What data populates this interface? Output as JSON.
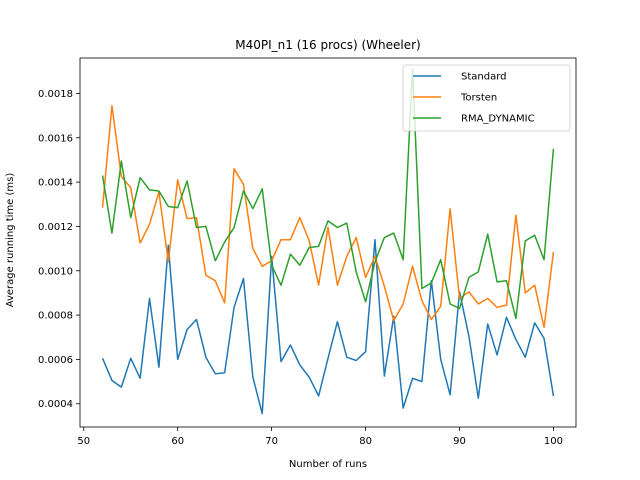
{
  "chart_data": {
    "type": "line",
    "title": "M40PI_n1 (16 procs) (Wheeler)",
    "xlabel": "Number of runs",
    "ylabel": "Average running time (ms)",
    "xlim": [
      49.6,
      102.4
    ],
    "ylim": [
      0.000295,
      0.00196
    ],
    "xticks": [
      50,
      60,
      70,
      80,
      90,
      100
    ],
    "yticks": [
      0.0004,
      0.0006,
      0.0008,
      0.001,
      0.0012,
      0.0014,
      0.0016,
      0.0018
    ],
    "ytick_labels": [
      "0.0004",
      "0.0006",
      "0.0008",
      "0.0010",
      "0.0012",
      "0.0014",
      "0.0016",
      "0.0018"
    ],
    "legend_position": "top-right",
    "grid": false,
    "x": [
      52,
      53,
      54,
      55,
      56,
      57,
      58,
      59,
      60,
      61,
      62,
      63,
      64,
      65,
      66,
      67,
      68,
      69,
      70,
      71,
      72,
      73,
      74,
      75,
      76,
      77,
      78,
      79,
      80,
      81,
      82,
      83,
      84,
      85,
      86,
      87,
      88,
      89,
      90,
      91,
      92,
      93,
      94,
      95,
      96,
      97,
      98,
      99,
      100
    ],
    "series": [
      {
        "name": "Standard",
        "color": "#1f77b4",
        "values": [
          0.000605,
          0.000505,
          0.000475,
          0.000605,
          0.000515,
          0.000875,
          0.000565,
          0.001115,
          0.0006,
          0.000735,
          0.00078,
          0.00061,
          0.000535,
          0.00054,
          0.000835,
          0.000965,
          0.00052,
          0.000355,
          0.001065,
          0.00059,
          0.000665,
          0.000575,
          0.00052,
          0.000435,
          0.000605,
          0.00077,
          0.00061,
          0.000595,
          0.000635,
          0.00114,
          0.000525,
          0.000795,
          0.00038,
          0.000515,
          0.0005,
          0.000955,
          0.0006,
          0.00044,
          0.000905,
          0.000705,
          0.000425,
          0.00076,
          0.00062,
          0.00079,
          0.00069,
          0.00061,
          0.000765,
          0.000695,
          0.000435
        ]
      },
      {
        "name": "Torsten",
        "color": "#ff7f0e",
        "values": [
          0.001285,
          0.001745,
          0.001425,
          0.001375,
          0.001125,
          0.00121,
          0.001355,
          0.00104,
          0.00141,
          0.001235,
          0.00124,
          0.00098,
          0.000955,
          0.000855,
          0.00146,
          0.00139,
          0.0011,
          0.00102,
          0.001045,
          0.00114,
          0.00114,
          0.00124,
          0.001135,
          0.000935,
          0.001195,
          0.000935,
          0.001065,
          0.00115,
          0.00097,
          0.001065,
          0.00093,
          0.000775,
          0.00085,
          0.00102,
          0.000865,
          0.00078,
          0.00084,
          0.00128,
          0.000875,
          0.000905,
          0.00085,
          0.000875,
          0.000835,
          0.000845,
          0.00125,
          0.0009,
          0.000935,
          0.000745,
          0.001085
        ]
      },
      {
        "name": "RMA_DYNAMIC",
        "color": "#2ca02c",
        "values": [
          0.00143,
          0.00117,
          0.001495,
          0.00124,
          0.00142,
          0.001365,
          0.00136,
          0.00129,
          0.001285,
          0.001405,
          0.001195,
          0.0012,
          0.001045,
          0.00113,
          0.001195,
          0.00136,
          0.00128,
          0.00137,
          0.001025,
          0.000935,
          0.001075,
          0.001025,
          0.001105,
          0.00111,
          0.001225,
          0.001195,
          0.001215,
          0.000995,
          0.00086,
          0.00104,
          0.00115,
          0.00117,
          0.00105,
          0.00191,
          0.00092,
          0.000945,
          0.00105,
          0.00085,
          0.00083,
          0.00097,
          0.000995,
          0.001165,
          0.00095,
          0.000955,
          0.000785,
          0.001135,
          0.00116,
          0.00105,
          0.00155
        ]
      }
    ]
  }
}
